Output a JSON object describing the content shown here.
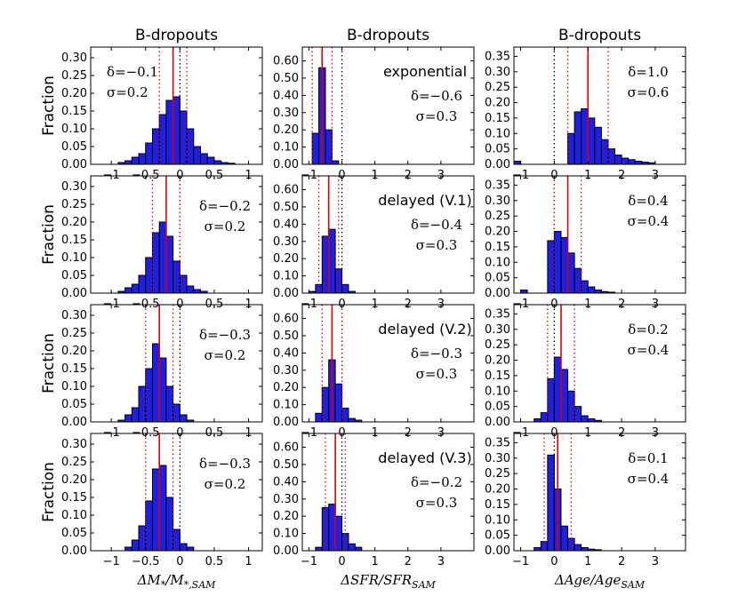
{
  "figure": {
    "column_titles": [
      "B-dropouts",
      "B-dropouts",
      "B-dropouts"
    ],
    "row_ylabel": "Fraction",
    "column_xlabels": [
      "ΔM*/M*,SAM",
      "ΔSFR/SFR_SAM",
      "ΔAge/Age_SAM"
    ],
    "row_models": [
      "exponential",
      "delayed (V.1)",
      "delayed (V.2)",
      "delayed (V.3)"
    ],
    "colors": {
      "bar": "#1f1fe0",
      "bar_edge": "#000000",
      "mean_line": "#dd0000",
      "sigma_lines": "#dd0000",
      "zero_line": "#000000"
    }
  },
  "chart_data": [
    {
      "type": "bar",
      "row": 0,
      "col": 0,
      "title": "B-dropouts",
      "ylabel": "Fraction",
      "xlim": [
        -1.3,
        1.2
      ],
      "ylim": [
        0,
        0.33
      ],
      "xticks": [
        -1.0,
        -0.5,
        0.0,
        0.5,
        1.0
      ],
      "yticks": [
        0.0,
        0.05,
        0.1,
        0.15,
        0.2,
        0.25,
        0.3
      ],
      "bin_width": 0.1,
      "bin_starts": [
        -0.9,
        -0.8,
        -0.7,
        -0.6,
        -0.5,
        -0.4,
        -0.3,
        -0.2,
        -0.1,
        0.0,
        0.1,
        0.2,
        0.3,
        0.4,
        0.5,
        0.6,
        0.7
      ],
      "values": [
        0.005,
        0.01,
        0.02,
        0.03,
        0.06,
        0.1,
        0.14,
        0.18,
        0.19,
        0.15,
        0.1,
        0.05,
        0.03,
        0.02,
        0.01,
        0.005,
        0.003
      ],
      "delta": -0.1,
      "sigma": 0.2,
      "stat_text": [
        "δ=−0.1",
        "σ=0.2"
      ]
    },
    {
      "type": "bar",
      "row": 0,
      "col": 1,
      "title": "B-dropouts",
      "model": "exponential",
      "xlim": [
        -1.2,
        4.0
      ],
      "ylim": [
        0,
        0.68
      ],
      "xticks": [
        -1,
        0,
        1,
        2,
        3
      ],
      "yticks": [
        0.0,
        0.1,
        0.2,
        0.3,
        0.4,
        0.5,
        0.6
      ],
      "bin_width": 0.2,
      "bin_starts": [
        -0.9,
        -0.7,
        -0.5,
        -0.3
      ],
      "values": [
        0.18,
        0.56,
        0.2,
        0.02
      ],
      "delta": -0.6,
      "sigma": 0.3,
      "stat_text": [
        "δ=−0.6",
        "σ=0.3"
      ]
    },
    {
      "type": "bar",
      "row": 0,
      "col": 2,
      "title": "B-dropouts",
      "xlim": [
        -1.2,
        3.9
      ],
      "ylim": [
        0,
        0.38
      ],
      "xticks": [
        -1,
        0,
        1,
        2,
        3
      ],
      "yticks": [
        0.0,
        0.05,
        0.1,
        0.15,
        0.2,
        0.25,
        0.3,
        0.35
      ],
      "bin_width": 0.2,
      "bin_starts": [
        -1.2,
        0.4,
        0.6,
        0.8,
        1.0,
        1.2,
        1.4,
        1.6,
        1.8,
        2.0,
        2.2,
        2.4,
        2.6,
        2.8
      ],
      "values": [
        0.01,
        0.1,
        0.17,
        0.18,
        0.15,
        0.12,
        0.08,
        0.05,
        0.03,
        0.02,
        0.015,
        0.01,
        0.007,
        0.005
      ],
      "delta": 1.0,
      "sigma": 0.6,
      "stat_text": [
        "δ=1.0",
        "σ=0.6"
      ]
    },
    {
      "type": "bar",
      "row": 1,
      "col": 0,
      "ylabel": "Fraction",
      "xlim": [
        -1.3,
        1.2
      ],
      "ylim": [
        0,
        0.33
      ],
      "xticks": [
        -1.0,
        -0.5,
        0.0,
        0.5,
        1.0
      ],
      "yticks": [
        0.0,
        0.05,
        0.1,
        0.15,
        0.2,
        0.25,
        0.3
      ],
      "bin_width": 0.1,
      "bin_starts": [
        -0.9,
        -0.8,
        -0.7,
        -0.6,
        -0.5,
        -0.4,
        -0.3,
        -0.2,
        -0.1,
        0.0,
        0.1,
        0.2,
        0.3
      ],
      "values": [
        0.005,
        0.015,
        0.025,
        0.05,
        0.1,
        0.17,
        0.2,
        0.16,
        0.09,
        0.05,
        0.02,
        0.01,
        0.005
      ],
      "delta": -0.2,
      "sigma": 0.2,
      "stat_text": [
        "δ=−0.2",
        "σ=0.2"
      ]
    },
    {
      "type": "bar",
      "row": 1,
      "col": 1,
      "model": "delayed (V.1)",
      "xlim": [
        -1.2,
        4.0
      ],
      "ylim": [
        0,
        0.68
      ],
      "xticks": [
        -1,
        0,
        1,
        2,
        3
      ],
      "yticks": [
        0.0,
        0.1,
        0.2,
        0.3,
        0.4,
        0.5,
        0.6
      ],
      "bin_width": 0.2,
      "bin_starts": [
        -1.0,
        -0.8,
        -0.6,
        -0.4,
        -0.2,
        0.0,
        0.2
      ],
      "values": [
        0.01,
        0.05,
        0.33,
        0.37,
        0.14,
        0.05,
        0.01
      ],
      "delta": -0.4,
      "sigma": 0.3,
      "stat_text": [
        "δ=−0.4",
        "σ=0.3"
      ]
    },
    {
      "type": "bar",
      "row": 1,
      "col": 2,
      "xlim": [
        -1.2,
        3.9
      ],
      "ylim": [
        0,
        0.38
      ],
      "xticks": [
        -1,
        0,
        1,
        2,
        3
      ],
      "yticks": [
        0.0,
        0.05,
        0.1,
        0.15,
        0.2,
        0.25,
        0.3,
        0.35
      ],
      "bin_width": 0.2,
      "bin_starts": [
        -1.0,
        -0.2,
        0.0,
        0.2,
        0.4,
        0.6,
        0.8,
        1.0,
        1.2,
        1.4,
        1.6
      ],
      "values": [
        0.01,
        0.17,
        0.2,
        0.18,
        0.13,
        0.08,
        0.04,
        0.02,
        0.01,
        0.005,
        0.003
      ],
      "delta": 0.4,
      "sigma": 0.4,
      "stat_text": [
        "δ=0.4",
        "σ=0.4"
      ]
    },
    {
      "type": "bar",
      "row": 2,
      "col": 0,
      "ylabel": "Fraction",
      "xlim": [
        -1.3,
        1.2
      ],
      "ylim": [
        0,
        0.33
      ],
      "xticks": [
        -1.0,
        -0.5,
        0.0,
        0.5,
        1.0
      ],
      "yticks": [
        0.0,
        0.05,
        0.1,
        0.15,
        0.2,
        0.25,
        0.3
      ],
      "bin_width": 0.1,
      "bin_starts": [
        -0.9,
        -0.8,
        -0.7,
        -0.6,
        -0.5,
        -0.4,
        -0.3,
        -0.2,
        -0.1,
        0.0,
        0.1
      ],
      "values": [
        0.005,
        0.02,
        0.04,
        0.1,
        0.15,
        0.22,
        0.18,
        0.1,
        0.05,
        0.02,
        0.005
      ],
      "delta": -0.3,
      "sigma": 0.2,
      "stat_text": [
        "δ=−0.3",
        "σ=0.2"
      ]
    },
    {
      "type": "bar",
      "row": 2,
      "col": 1,
      "model": "delayed (V.2)",
      "xlim": [
        -1.2,
        4.0
      ],
      "ylim": [
        0,
        0.68
      ],
      "xticks": [
        -1,
        0,
        1,
        2,
        3
      ],
      "yticks": [
        0.0,
        0.1,
        0.2,
        0.3,
        0.4,
        0.5,
        0.6
      ],
      "bin_width": 0.2,
      "bin_starts": [
        -0.8,
        -0.6,
        -0.4,
        -0.2,
        0.0,
        0.2,
        0.4
      ],
      "values": [
        0.05,
        0.2,
        0.36,
        0.22,
        0.08,
        0.02,
        0.01
      ],
      "delta": -0.3,
      "sigma": 0.3,
      "stat_text": [
        "δ=−0.3",
        "σ=0.3"
      ]
    },
    {
      "type": "bar",
      "row": 2,
      "col": 2,
      "xlim": [
        -1.2,
        3.9
      ],
      "ylim": [
        0,
        0.38
      ],
      "xticks": [
        -1,
        0,
        1,
        2,
        3
      ],
      "yticks": [
        0.0,
        0.05,
        0.1,
        0.15,
        0.2,
        0.25,
        0.3,
        0.35
      ],
      "bin_width": 0.2,
      "bin_starts": [
        -0.6,
        -0.4,
        -0.2,
        0.0,
        0.2,
        0.4,
        0.6,
        0.8,
        1.0,
        1.2
      ],
      "values": [
        0.01,
        0.03,
        0.14,
        0.21,
        0.17,
        0.1,
        0.05,
        0.02,
        0.01,
        0.005
      ],
      "delta": 0.2,
      "sigma": 0.4,
      "stat_text": [
        "δ=0.2",
        "σ=0.4"
      ]
    },
    {
      "type": "bar",
      "row": 3,
      "col": 0,
      "ylabel": "Fraction",
      "xlabel": "ΔM*/M*,SAM",
      "xlim": [
        -1.3,
        1.2
      ],
      "ylim": [
        0,
        0.33
      ],
      "xticks": [
        -1.0,
        -0.5,
        0.0,
        0.5,
        1.0
      ],
      "yticks": [
        0.0,
        0.05,
        0.1,
        0.15,
        0.2,
        0.25,
        0.3
      ],
      "bin_width": 0.1,
      "bin_starts": [
        -0.8,
        -0.7,
        -0.6,
        -0.5,
        -0.4,
        -0.3,
        -0.2,
        -0.1,
        0.0,
        0.1
      ],
      "values": [
        0.01,
        0.03,
        0.07,
        0.14,
        0.23,
        0.24,
        0.15,
        0.06,
        0.02,
        0.01
      ],
      "delta": -0.3,
      "sigma": 0.2,
      "stat_text": [
        "δ=−0.3",
        "σ=0.2"
      ]
    },
    {
      "type": "bar",
      "row": 3,
      "col": 1,
      "model": "delayed (V.3)",
      "xlabel": "ΔSFR/SFR_SAM",
      "xlim": [
        -1.2,
        4.0
      ],
      "ylim": [
        0,
        0.68
      ],
      "xticks": [
        -1,
        0,
        1,
        2,
        3
      ],
      "yticks": [
        0.0,
        0.1,
        0.2,
        0.3,
        0.4,
        0.5,
        0.6
      ],
      "bin_width": 0.2,
      "bin_starts": [
        -0.8,
        -0.6,
        -0.4,
        -0.2,
        0.0,
        0.2,
        0.4
      ],
      "values": [
        0.02,
        0.25,
        0.27,
        0.2,
        0.1,
        0.04,
        0.02
      ],
      "delta": -0.2,
      "sigma": 0.3,
      "stat_text": [
        "δ=−0.2",
        "σ=0.3"
      ]
    },
    {
      "type": "bar",
      "row": 3,
      "col": 2,
      "xlabel": "ΔAge/Age_SAM",
      "xlim": [
        -1.2,
        3.9
      ],
      "ylim": [
        0,
        0.38
      ],
      "xticks": [
        -1,
        0,
        1,
        2,
        3
      ],
      "yticks": [
        0.0,
        0.05,
        0.1,
        0.15,
        0.2,
        0.25,
        0.3,
        0.35
      ],
      "bin_width": 0.2,
      "bin_starts": [
        -0.6,
        -0.4,
        -0.2,
        0.0,
        0.2,
        0.4,
        0.6,
        0.8,
        1.0,
        1.2
      ],
      "values": [
        0.01,
        0.03,
        0.31,
        0.2,
        0.08,
        0.04,
        0.02,
        0.01,
        0.005,
        0.003
      ],
      "delta": 0.1,
      "sigma": 0.4,
      "stat_text": [
        "δ=0.1",
        "σ=0.4"
      ]
    }
  ]
}
